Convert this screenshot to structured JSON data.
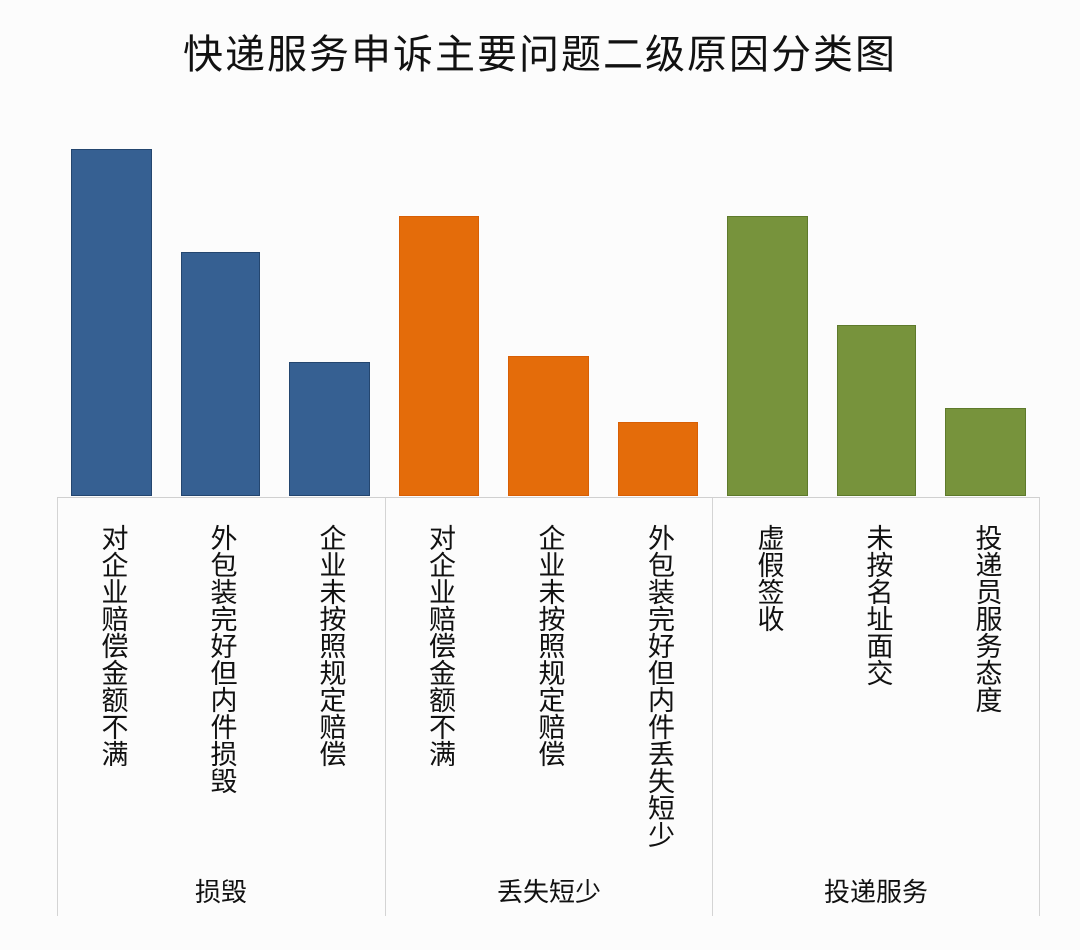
{
  "title": "快递服务申诉主要问题二级原因分类图",
  "colors": {
    "damage": "#366092",
    "damage_border": "#24466f",
    "loss": "#e46c0a",
    "loss_border": "#d85f05",
    "delivery": "#77933c",
    "delivery_border": "#5e7a2c",
    "axis": "#d0d0d0"
  },
  "groups": [
    {
      "label": "损毁",
      "color_key": "damage"
    },
    {
      "label": "丢失短少",
      "color_key": "loss"
    },
    {
      "label": "投递服务",
      "color_key": "delivery"
    }
  ],
  "bars": [
    {
      "group": 0,
      "label": "对企业赔偿金额不满",
      "value": 347
    },
    {
      "group": 0,
      "label": "外包装完好但内件损毁",
      "value": 244
    },
    {
      "group": 0,
      "label": "企业未按照规定赔偿",
      "value": 134
    },
    {
      "group": 1,
      "label": "对企业赔偿金额不满",
      "value": 280
    },
    {
      "group": 1,
      "label": "企业未按照规定赔偿",
      "value": 140
    },
    {
      "group": 1,
      "label": "外包装完好但内件丢失短少",
      "value": 74
    },
    {
      "group": 2,
      "label": "虚假签收",
      "value": 280
    },
    {
      "group": 2,
      "label": "未按名址面交",
      "value": 171
    },
    {
      "group": 2,
      "label": "投递员服务态度",
      "value": 88
    }
  ],
  "chart_data": {
    "type": "bar",
    "title": "快递服务申诉主要问题二级原因分类图",
    "xlabel": "",
    "ylabel": "",
    "grid": false,
    "legend": "none",
    "note": "No y-axis shown; values are relative bar heights (pixels) read from the image.",
    "group_labels": [
      "损毁",
      "丢失短少",
      "投递服务"
    ],
    "categories": [
      "对企业赔偿金额不满",
      "外包装完好但内件损毁",
      "企业未按照规定赔偿",
      "对企业赔偿金额不满",
      "企业未按照规定赔偿",
      "外包装完好但内件丢失短少",
      "虚假签收",
      "未按名址面交",
      "投递员服务态度"
    ],
    "series": [
      {
        "name": "损毁",
        "categories": [
          "对企业赔偿金额不满",
          "外包装完好但内件损毁",
          "企业未按照规定赔偿"
        ],
        "values": [
          347,
          244,
          134
        ],
        "color": "#366092"
      },
      {
        "name": "丢失短少",
        "categories": [
          "对企业赔偿金额不满",
          "企业未按照规定赔偿",
          "外包装完好但内件丢失短少"
        ],
        "values": [
          280,
          140,
          74
        ],
        "color": "#e46c0a"
      },
      {
        "name": "投递服务",
        "categories": [
          "虚假签收",
          "未按名址面交",
          "投递员服务态度"
        ],
        "values": [
          280,
          171,
          88
        ],
        "color": "#77933c"
      }
    ],
    "ylim": [
      0,
      350
    ]
  }
}
